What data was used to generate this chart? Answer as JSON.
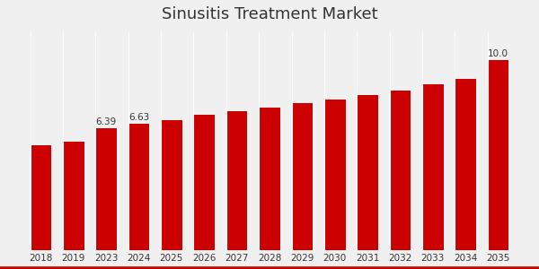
{
  "title": "Sinusitis Treatment Market",
  "categories": [
    "2018",
    "2019",
    "2023",
    "2024",
    "2025",
    "2026",
    "2027",
    "2028",
    "2029",
    "2030",
    "2031",
    "2032",
    "2033",
    "2034",
    "2035"
  ],
  "values": [
    5.5,
    5.7,
    6.39,
    6.63,
    6.85,
    7.1,
    7.3,
    7.5,
    7.7,
    7.9,
    8.15,
    8.4,
    8.7,
    9.0,
    10.0
  ],
  "bar_color": "#CC0000",
  "background_color": "#f0f0f0",
  "annotations": {
    "2023": "6.39",
    "2024": "6.63",
    "2035": "10.0"
  },
  "ylim": [
    0,
    11.5
  ],
  "title_fontsize": 13,
  "label_fontsize": 8,
  "tick_fontsize": 7.5
}
